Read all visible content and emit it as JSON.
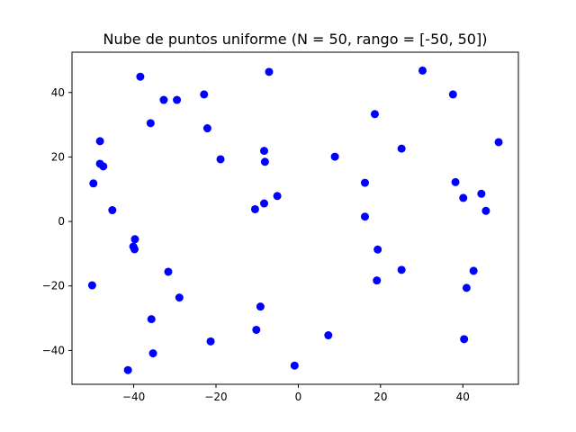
{
  "chart_data": {
    "type": "scatter",
    "title": "Nube de puntos uniforme (N = 50, rango = [-50, 50])",
    "xlabel": "",
    "ylabel": "",
    "xlim": [
      -55,
      53.5
    ],
    "ylim": [
      -50.5,
      52.5
    ],
    "xticks": [
      -40,
      -20,
      0,
      20,
      40
    ],
    "yticks": [
      -40,
      -20,
      0,
      20,
      40
    ],
    "grid": false,
    "marker_color": "#0000ff",
    "series": [
      {
        "points": [
          {
            "x": -38.4,
            "y": 44.9
          },
          {
            "x": -7.1,
            "y": 46.4
          },
          {
            "x": 30.2,
            "y": 46.8
          },
          {
            "x": -32.7,
            "y": 37.7
          },
          {
            "x": -29.5,
            "y": 37.7
          },
          {
            "x": -22.9,
            "y": 39.4
          },
          {
            "x": 37.6,
            "y": 39.4
          },
          {
            "x": -35.9,
            "y": 30.5
          },
          {
            "x": -22.1,
            "y": 28.9
          },
          {
            "x": 18.6,
            "y": 33.3
          },
          {
            "x": -48.2,
            "y": 24.9
          },
          {
            "x": -48.2,
            "y": 17.9
          },
          {
            "x": -47.4,
            "y": 17.1
          },
          {
            "x": -18.9,
            "y": 19.3
          },
          {
            "x": -8.3,
            "y": 21.9
          },
          {
            "x": -8.1,
            "y": 18.5
          },
          {
            "x": 8.9,
            "y": 20.1
          },
          {
            "x": 25.1,
            "y": 22.6
          },
          {
            "x": 48.7,
            "y": 24.6
          },
          {
            "x": -49.8,
            "y": 11.8
          },
          {
            "x": -45.2,
            "y": 3.5
          },
          {
            "x": -10.5,
            "y": 3.8
          },
          {
            "x": -8.3,
            "y": 5.6
          },
          {
            "x": -5.1,
            "y": 7.9
          },
          {
            "x": 16.2,
            "y": 12.0
          },
          {
            "x": 16.2,
            "y": 1.5
          },
          {
            "x": 38.2,
            "y": 12.2
          },
          {
            "x": 40.1,
            "y": 7.3
          },
          {
            "x": 44.5,
            "y": 8.6
          },
          {
            "x": 45.6,
            "y": 3.3
          },
          {
            "x": -39.7,
            "y": -5.5
          },
          {
            "x": -40.1,
            "y": -7.8
          },
          {
            "x": -39.8,
            "y": -8.6
          },
          {
            "x": -31.6,
            "y": -15.6
          },
          {
            "x": -28.9,
            "y": -23.6
          },
          {
            "x": 19.3,
            "y": -8.7
          },
          {
            "x": 25.1,
            "y": -15.0
          },
          {
            "x": 19.1,
            "y": -18.3
          },
          {
            "x": 42.6,
            "y": -15.3
          },
          {
            "x": 40.9,
            "y": -20.6
          },
          {
            "x": -50.1,
            "y": -19.8
          },
          {
            "x": -35.7,
            "y": -30.3
          },
          {
            "x": -35.3,
            "y": -40.9
          },
          {
            "x": -41.4,
            "y": -46.1
          },
          {
            "x": -21.3,
            "y": -37.2
          },
          {
            "x": -9.2,
            "y": -26.4
          },
          {
            "x": -10.2,
            "y": -33.6
          },
          {
            "x": 7.3,
            "y": -35.3
          },
          {
            "x": 40.3,
            "y": -36.5
          },
          {
            "x": -0.9,
            "y": -44.7
          }
        ]
      }
    ]
  }
}
